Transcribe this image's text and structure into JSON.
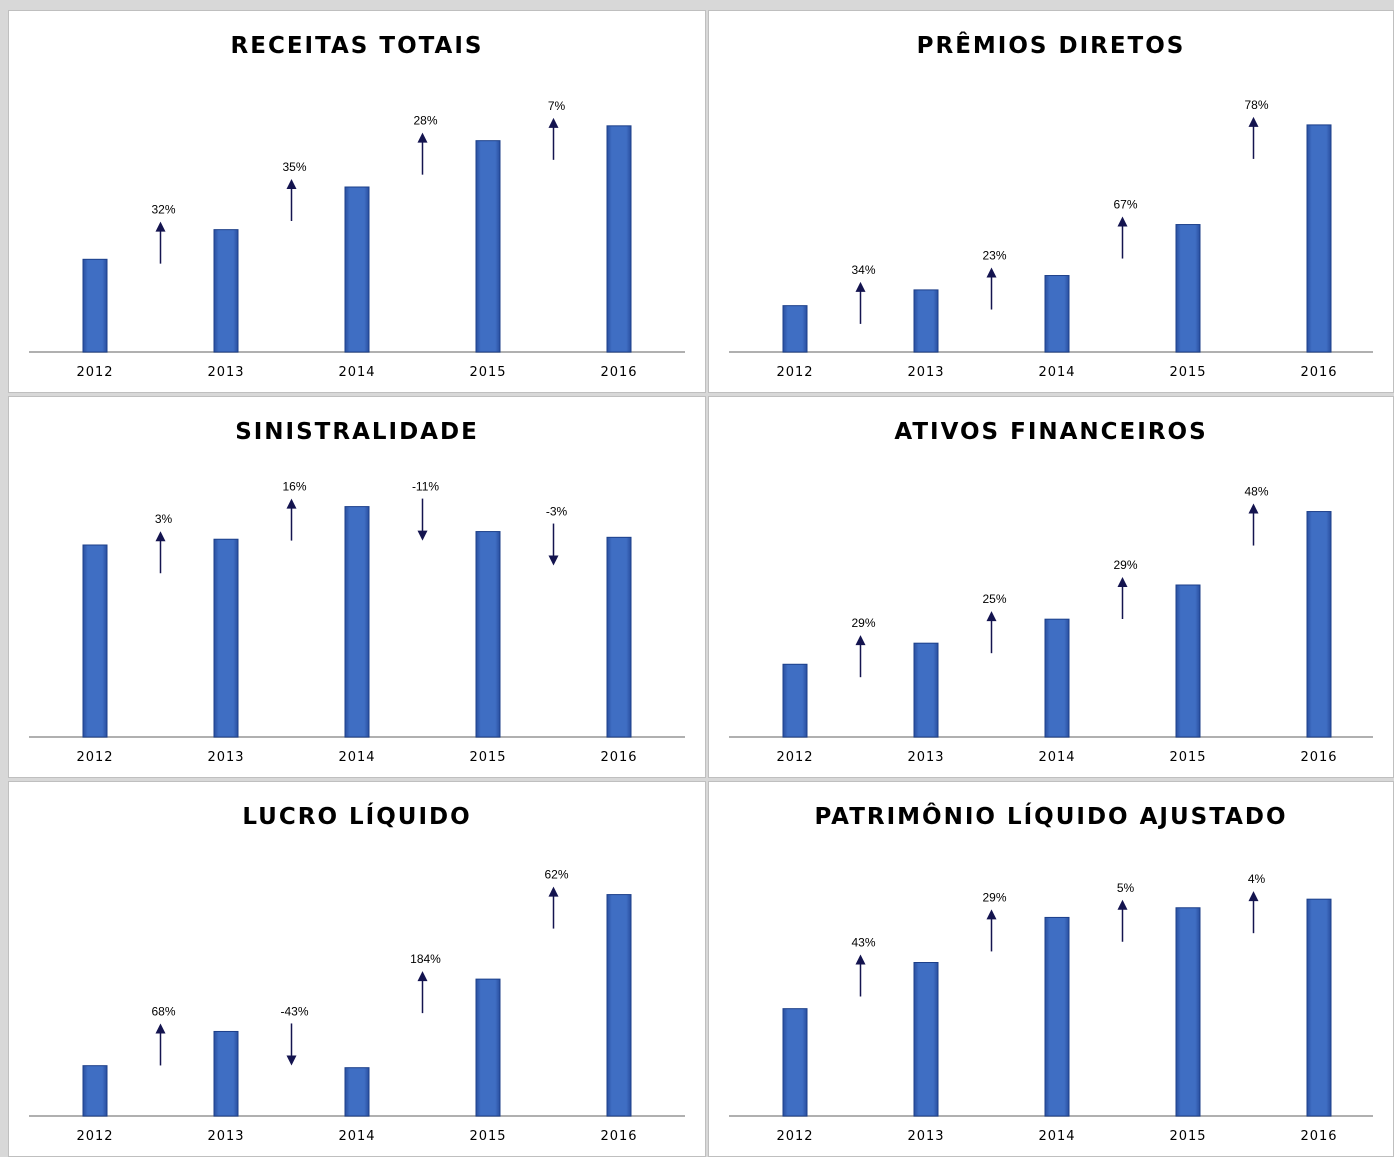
{
  "colors": {
    "bar": "#3f6ec3",
    "bar_edge": "#1c3f8a",
    "arrow": "#14144f",
    "axis": "#b0b0b0"
  },
  "chart_data": [
    {
      "type": "bar",
      "title": "RECEITAS TOTAIS",
      "categories": [
        "2012",
        "2013",
        "2014",
        "2015",
        "2016"
      ],
      "values": [
        100,
        132,
        178,
        228,
        244
      ],
      "ylim": [
        0,
        260
      ],
      "changes": [
        {
          "label": "32%",
          "direction": "up"
        },
        {
          "label": "35%",
          "direction": "up"
        },
        {
          "label": "28%",
          "direction": "up"
        },
        {
          "label": "7%",
          "direction": "up"
        }
      ],
      "grid": false
    },
    {
      "type": "bar",
      "title": "PRÊMIOS DIRETOS",
      "categories": [
        "2012",
        "2013",
        "2014",
        "2015",
        "2016"
      ],
      "values": [
        100,
        134,
        165,
        275,
        490
      ],
      "ylim": [
        0,
        520
      ],
      "changes": [
        {
          "label": "34%",
          "direction": "up"
        },
        {
          "label": "23%",
          "direction": "up"
        },
        {
          "label": "67%",
          "direction": "up"
        },
        {
          "label": "78%",
          "direction": "up"
        }
      ],
      "grid": false
    },
    {
      "type": "bar",
      "title": "SINISTRALIDADE",
      "categories": [
        "2012",
        "2013",
        "2014",
        "2015",
        "2016"
      ],
      "values": [
        100,
        103,
        120,
        107,
        104
      ],
      "ylim": [
        0,
        125
      ],
      "changes": [
        {
          "label": "3%",
          "direction": "up"
        },
        {
          "label": "16%",
          "direction": "up"
        },
        {
          "label": "-11%",
          "direction": "down"
        },
        {
          "label": "-3%",
          "direction": "down"
        }
      ],
      "grid": false
    },
    {
      "type": "bar",
      "title": "ATIVOS FINANCEIROS",
      "categories": [
        "2012",
        "2013",
        "2014",
        "2015",
        "2016"
      ],
      "values": [
        100,
        129,
        162,
        209,
        310
      ],
      "ylim": [
        0,
        330
      ],
      "changes": [
        {
          "label": "29%",
          "direction": "up"
        },
        {
          "label": "25%",
          "direction": "up"
        },
        {
          "label": "29%",
          "direction": "up"
        },
        {
          "label": "48%",
          "direction": "up"
        }
      ],
      "grid": false
    },
    {
      "type": "bar",
      "title": "LUCRO LÍQUIDO",
      "categories": [
        "2012",
        "2013",
        "2014",
        "2015",
        "2016"
      ],
      "values": [
        100,
        168,
        96,
        272,
        440
      ],
      "ylim": [
        0,
        465
      ],
      "changes": [
        {
          "label": "68%",
          "direction": "up"
        },
        {
          "label": "-43%",
          "direction": "down"
        },
        {
          "label": "184%",
          "direction": "up"
        },
        {
          "label": "62%",
          "direction": "up"
        }
      ],
      "grid": false
    },
    {
      "type": "bar",
      "title": "PATRIMÔNIO LÍQUIDO AJUSTADO",
      "categories": [
        "2012",
        "2013",
        "2014",
        "2015",
        "2016"
      ],
      "values": [
        100,
        143,
        185,
        194,
        202
      ],
      "ylim": [
        0,
        218
      ],
      "changes": [
        {
          "label": "43%",
          "direction": "up"
        },
        {
          "label": "29%",
          "direction": "up"
        },
        {
          "label": "5%",
          "direction": "up"
        },
        {
          "label": "4%",
          "direction": "up"
        }
      ],
      "grid": false
    }
  ]
}
